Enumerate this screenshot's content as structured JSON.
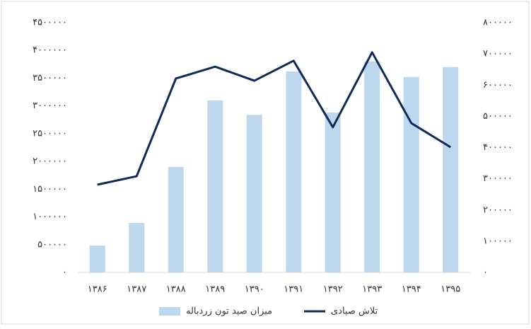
{
  "chart_data": {
    "type": "bar-line",
    "categories": [
      "۱۳۸۶",
      "۱۳۸۷",
      "۱۳۸۸",
      "۱۳۸۹",
      "۱۳۹۰",
      "۱۳۹۱",
      "۱۳۹۲",
      "۱۳۹۳",
      "۱۳۹۴",
      "۱۳۹۵"
    ],
    "series": [
      {
        "name": "میزان صید تون زردباله",
        "type": "bar",
        "color": "#bdd7ee",
        "values": [
          484000,
          892000,
          1900000,
          3100000,
          2840000,
          3620000,
          2880000,
          3800000,
          3520000,
          3700000
        ]
      },
      {
        "name": "تلاش صیادی",
        "type": "line",
        "axis": "y2",
        "color": "#0e2a5a",
        "values": [
          281000,
          308000,
          621000,
          659000,
          614000,
          678000,
          465000,
          705000,
          478000,
          401000
        ]
      }
    ],
    "ylim": [
      0,
      4500000
    ],
    "yticks": [
      {
        "value": 0,
        "label": "۰"
      },
      {
        "value": 500000,
        "label": "۵۰۰۰۰۰"
      },
      {
        "value": 1000000,
        "label": "۱۰۰۰۰۰۰"
      },
      {
        "value": 1500000,
        "label": "۱۵۰۰۰۰۰"
      },
      {
        "value": 2000000,
        "label": "۲۰۰۰۰۰۰"
      },
      {
        "value": 2500000,
        "label": "۲۵۰۰۰۰۰"
      },
      {
        "value": 3000000,
        "label": "۳۰۰۰۰۰۰"
      },
      {
        "value": 3500000,
        "label": "۳۵۰۰۰۰۰"
      },
      {
        "value": 4000000,
        "label": "۴۰۰۰۰۰۰"
      },
      {
        "value": 4500000,
        "label": "۴۵۰۰۰۰۰"
      }
    ],
    "y2lim": [
      0,
      800000
    ],
    "y2ticks": [
      {
        "value": 0,
        "label": "۰"
      },
      {
        "value": 100000,
        "label": "۱۰۰۰۰۰"
      },
      {
        "value": 200000,
        "label": "۲۰۰۰۰۰"
      },
      {
        "value": 300000,
        "label": "۳۰۰۰۰۰"
      },
      {
        "value": 400000,
        "label": "۴۰۰۰۰۰"
      },
      {
        "value": 500000,
        "label": "۵۰۰۰۰۰"
      },
      {
        "value": 600000,
        "label": "۶۰۰۰۰۰"
      },
      {
        "value": 700000,
        "label": "۷۰۰۰۰۰"
      },
      {
        "value": 800000,
        "label": "۸۰۰۰۰۰"
      }
    ],
    "grid": false,
    "legend": "bottom"
  }
}
